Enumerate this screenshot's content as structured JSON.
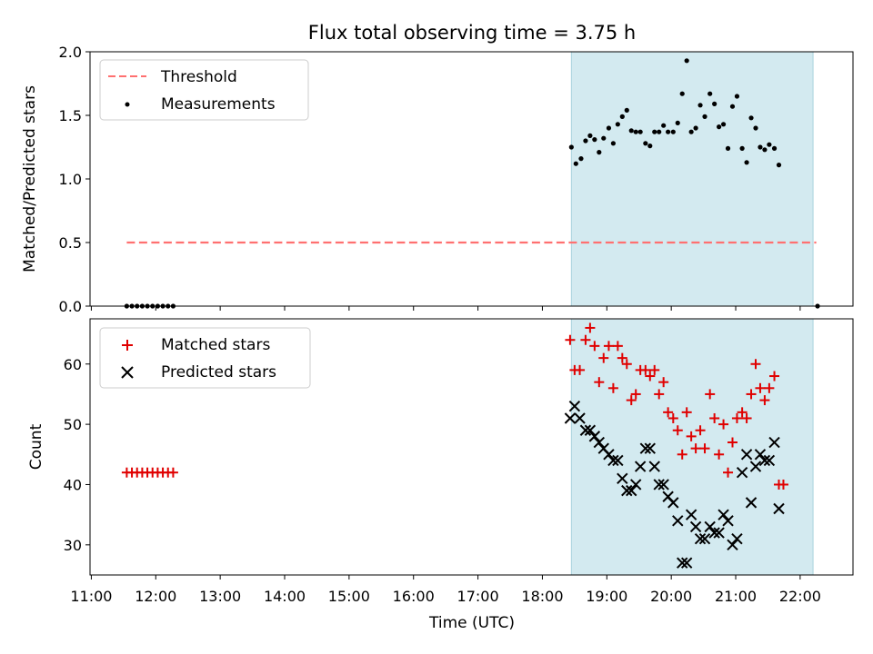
{
  "chart_data": {
    "type": "scatter",
    "title": "Flux total observing time = 3.75 h",
    "colors": {
      "threshold": "#ff7070",
      "measurement": "#000000",
      "matched": "#e00000",
      "predicted": "#000000",
      "shade": "#d3eaf0",
      "shade_edge": "#a9d3de"
    },
    "shared_x": {
      "label": "Time (UTC)",
      "range": [
        10.98,
        22.82
      ],
      "ticks": [
        11,
        12,
        13,
        14,
        15,
        16,
        17,
        18,
        19,
        20,
        21,
        22
      ],
      "tick_labels": [
        "11:00",
        "12:00",
        "13:00",
        "14:00",
        "15:00",
        "16:00",
        "17:00",
        "18:00",
        "19:00",
        "20:00",
        "21:00",
        "22:00"
      ],
      "observing_window": [
        18.45,
        22.2
      ]
    },
    "panels": [
      {
        "id": "ratio",
        "ylabel": "Matched/Predicted stars",
        "ylim": [
          0,
          2
        ],
        "yticks": [
          0,
          0.5,
          1,
          1.5,
          2
        ],
        "ytick_labels": [
          "0.0",
          "0.5",
          "1.0",
          "1.5",
          "2.0"
        ],
        "legend": [
          "Threshold",
          "Measurements"
        ],
        "threshold": {
          "name": "Threshold",
          "value": 0.5,
          "x_range": [
            11.55,
            22.25
          ]
        },
        "measurements": {
          "name": "Measurements",
          "points": [
            [
              11.55,
              0
            ],
            [
              11.63,
              0
            ],
            [
              11.71,
              0
            ],
            [
              11.79,
              0
            ],
            [
              11.87,
              0
            ],
            [
              11.95,
              0
            ],
            [
              12.03,
              0
            ],
            [
              12.11,
              0
            ],
            [
              12.19,
              0
            ],
            [
              12.27,
              0
            ],
            [
              18.45,
              1.25
            ],
            [
              18.52,
              1.12
            ],
            [
              18.6,
              1.16
            ],
            [
              18.67,
              1.3
            ],
            [
              18.74,
              1.34
            ],
            [
              18.81,
              1.31
            ],
            [
              18.88,
              1.21
            ],
            [
              18.95,
              1.32
            ],
            [
              19.03,
              1.4
            ],
            [
              19.1,
              1.28
            ],
            [
              19.17,
              1.43
            ],
            [
              19.24,
              1.49
            ],
            [
              19.31,
              1.54
            ],
            [
              19.38,
              1.38
            ],
            [
              19.45,
              1.37
            ],
            [
              19.52,
              1.37
            ],
            [
              19.6,
              1.28
            ],
            [
              19.67,
              1.26
            ],
            [
              19.74,
              1.37
            ],
            [
              19.81,
              1.37
            ],
            [
              19.88,
              1.42
            ],
            [
              19.95,
              1.37
            ],
            [
              20.03,
              1.37
            ],
            [
              20.1,
              1.44
            ],
            [
              20.17,
              1.67
            ],
            [
              20.24,
              1.93
            ],
            [
              20.31,
              1.37
            ],
            [
              20.38,
              1.4
            ],
            [
              20.45,
              1.58
            ],
            [
              20.52,
              1.49
            ],
            [
              20.6,
              1.67
            ],
            [
              20.67,
              1.59
            ],
            [
              20.74,
              1.41
            ],
            [
              20.81,
              1.43
            ],
            [
              20.88,
              1.24
            ],
            [
              20.95,
              1.57
            ],
            [
              21.02,
              1.65
            ],
            [
              21.1,
              1.24
            ],
            [
              21.17,
              1.13
            ],
            [
              21.24,
              1.48
            ],
            [
              21.31,
              1.4
            ],
            [
              21.38,
              1.25
            ],
            [
              21.45,
              1.23
            ],
            [
              21.52,
              1.27
            ],
            [
              21.6,
              1.24
            ],
            [
              21.67,
              1.11
            ],
            [
              22.27,
              0
            ]
          ]
        }
      },
      {
        "id": "count",
        "ylabel": "Count",
        "ylim": [
          25,
          67.5
        ],
        "yticks": [
          30,
          40,
          50,
          60
        ],
        "ytick_labels": [
          "30",
          "40",
          "50",
          "60"
        ],
        "legend": [
          "Matched stars",
          "Predicted stars"
        ],
        "series": [
          {
            "name": "Matched stars",
            "marker": "+",
            "points": [
              [
                11.55,
                42
              ],
              [
                11.63,
                42
              ],
              [
                11.71,
                42
              ],
              [
                11.79,
                42
              ],
              [
                11.87,
                42
              ],
              [
                11.95,
                42
              ],
              [
                12.03,
                42
              ],
              [
                12.11,
                42
              ],
              [
                12.19,
                42
              ],
              [
                12.27,
                42
              ],
              [
                18.43,
                64
              ],
              [
                18.5,
                59
              ],
              [
                18.58,
                59
              ],
              [
                18.67,
                64
              ],
              [
                18.74,
                66
              ],
              [
                18.81,
                63
              ],
              [
                18.88,
                57
              ],
              [
                18.95,
                61
              ],
              [
                19.03,
                63
              ],
              [
                19.1,
                56
              ],
              [
                19.17,
                63
              ],
              [
                19.24,
                61
              ],
              [
                19.31,
                60
              ],
              [
                19.38,
                54
              ],
              [
                19.45,
                55
              ],
              [
                19.52,
                59
              ],
              [
                19.6,
                59
              ],
              [
                19.67,
                58
              ],
              [
                19.74,
                59
              ],
              [
                19.81,
                55
              ],
              [
                19.88,
                57
              ],
              [
                19.95,
                52
              ],
              [
                20.03,
                51
              ],
              [
                20.1,
                49
              ],
              [
                20.17,
                45
              ],
              [
                20.24,
                52
              ],
              [
                20.31,
                48
              ],
              [
                20.38,
                46
              ],
              [
                20.45,
                49
              ],
              [
                20.52,
                46
              ],
              [
                20.6,
                55
              ],
              [
                20.67,
                51
              ],
              [
                20.74,
                45
              ],
              [
                20.81,
                50
              ],
              [
                20.88,
                42
              ],
              [
                20.95,
                47
              ],
              [
                21.02,
                51
              ],
              [
                21.1,
                52
              ],
              [
                21.17,
                51
              ],
              [
                21.24,
                55
              ],
              [
                21.31,
                60
              ],
              [
                21.38,
                56
              ],
              [
                21.45,
                54
              ],
              [
                21.52,
                56
              ],
              [
                21.6,
                58
              ],
              [
                21.67,
                40
              ],
              [
                21.74,
                40
              ]
            ]
          },
          {
            "name": "Predicted stars",
            "marker": "x",
            "points": [
              [
                18.43,
                51
              ],
              [
                18.5,
                53
              ],
              [
                18.58,
                51
              ],
              [
                18.67,
                49
              ],
              [
                18.74,
                49
              ],
              [
                18.81,
                48
              ],
              [
                18.88,
                47
              ],
              [
                18.95,
                46
              ],
              [
                19.03,
                45
              ],
              [
                19.1,
                44
              ],
              [
                19.17,
                44
              ],
              [
                19.24,
                41
              ],
              [
                19.31,
                39
              ],
              [
                19.38,
                39
              ],
              [
                19.45,
                40
              ],
              [
                19.52,
                43
              ],
              [
                19.6,
                46
              ],
              [
                19.67,
                46
              ],
              [
                19.74,
                43
              ],
              [
                19.81,
                40
              ],
              [
                19.88,
                40
              ],
              [
                19.95,
                38
              ],
              [
                20.03,
                37
              ],
              [
                20.1,
                34
              ],
              [
                20.17,
                27
              ],
              [
                20.24,
                27
              ],
              [
                20.31,
                35
              ],
              [
                20.38,
                33
              ],
              [
                20.45,
                31
              ],
              [
                20.52,
                31
              ],
              [
                20.6,
                33
              ],
              [
                20.67,
                32
              ],
              [
                20.74,
                32
              ],
              [
                20.81,
                35
              ],
              [
                20.88,
                34
              ],
              [
                20.95,
                30
              ],
              [
                21.02,
                31
              ],
              [
                21.1,
                42
              ],
              [
                21.17,
                45
              ],
              [
                21.24,
                37
              ],
              [
                21.31,
                43
              ],
              [
                21.38,
                45
              ],
              [
                21.45,
                44
              ],
              [
                21.52,
                44
              ],
              [
                21.6,
                47
              ],
              [
                21.67,
                36
              ]
            ]
          }
        ]
      }
    ]
  }
}
